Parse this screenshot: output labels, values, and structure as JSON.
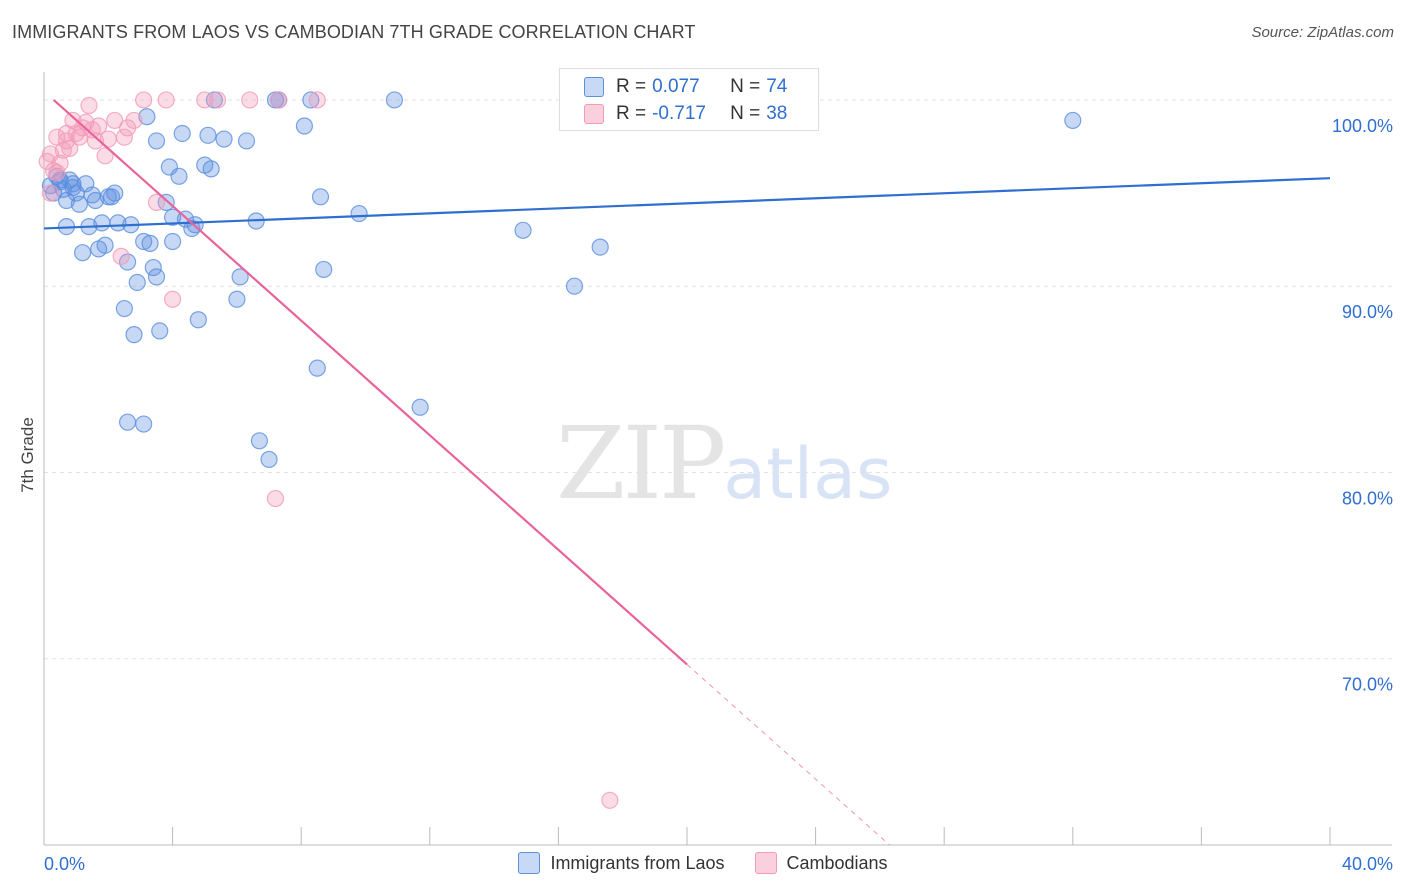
{
  "header": {
    "title": "IMMIGRANTS FROM LAOS VS CAMBODIAN 7TH GRADE CORRELATION CHART",
    "source": "Source: ZipAtlas.com"
  },
  "watermark": {
    "zip": "ZIP",
    "atlas": "atlas"
  },
  "legend": {
    "rows": [
      {
        "r_label": "R = ",
        "r_value": "0.077",
        "n_label": "N = ",
        "n_value": "74"
      },
      {
        "r_label": "R = ",
        "r_value": "-0.717",
        "n_label": "N = ",
        "n_value": "38"
      }
    ]
  },
  "chart_data": {
    "type": "scatter",
    "title": "IMMIGRANTS FROM LAOS VS CAMBODIAN 7TH GRADE CORRELATION CHART",
    "xlabel": "",
    "ylabel": "7th Grade",
    "xlim": [
      0,
      40
    ],
    "ylim": [
      60,
      101.5
    ],
    "x_tick_labels": [
      "0.0%",
      "40.0%"
    ],
    "y_ticks": [
      70,
      80,
      90,
      100
    ],
    "y_tick_labels": [
      "70.0%",
      "80.0%",
      "90.0%",
      "100.0%"
    ],
    "grid": true,
    "legend_position": "bottom",
    "colors": {
      "laos": "#5b8fe0",
      "laos_line": "#2f6fd0",
      "cambodian": "#f39ab8",
      "cambodian_line": "#e8649a"
    },
    "series": [
      {
        "name": "Immigrants from Laos",
        "r": 0.077,
        "n": 74,
        "trend": {
          "x0": 0,
          "y0": 93.1,
          "x1": 40,
          "y1": 95.8,
          "dash_from": 40
        },
        "points": [
          [
            0.2,
            95.4
          ],
          [
            0.3,
            95.0
          ],
          [
            0.4,
            95.9
          ],
          [
            0.5,
            95.6
          ],
          [
            0.6,
            95.2
          ],
          [
            0.7,
            94.6
          ],
          [
            0.8,
            95.7
          ],
          [
            0.9,
            95.3
          ],
          [
            0.7,
            93.2
          ],
          [
            1.0,
            95.0
          ],
          [
            1.1,
            94.4
          ],
          [
            1.3,
            95.5
          ],
          [
            1.4,
            93.2
          ],
          [
            1.5,
            94.9
          ],
          [
            1.6,
            94.6
          ],
          [
            1.2,
            91.8
          ],
          [
            1.7,
            92.0
          ],
          [
            1.8,
            93.4
          ],
          [
            1.9,
            92.2
          ],
          [
            2.0,
            94.8
          ],
          [
            2.1,
            94.8
          ],
          [
            2.2,
            95.0
          ],
          [
            2.3,
            93.4
          ],
          [
            2.5,
            88.8
          ],
          [
            2.6,
            91.3
          ],
          [
            2.7,
            93.3
          ],
          [
            2.8,
            87.4
          ],
          [
            2.9,
            90.2
          ],
          [
            3.1,
            92.4
          ],
          [
            3.2,
            99.1
          ],
          [
            3.3,
            92.3
          ],
          [
            3.4,
            91.0
          ],
          [
            3.5,
            90.5
          ],
          [
            3.5,
            97.8
          ],
          [
            3.6,
            87.6
          ],
          [
            3.8,
            94.5
          ],
          [
            3.9,
            96.4
          ],
          [
            4.0,
            93.7
          ],
          [
            4.0,
            92.4
          ],
          [
            4.2,
            95.9
          ],
          [
            4.3,
            98.2
          ],
          [
            4.4,
            93.6
          ],
          [
            4.6,
            93.1
          ],
          [
            4.7,
            93.3
          ],
          [
            4.8,
            88.2
          ],
          [
            5.0,
            96.5
          ],
          [
            5.1,
            98.1
          ],
          [
            5.2,
            96.3
          ],
          [
            5.3,
            100.0
          ],
          [
            5.6,
            97.9
          ],
          [
            6.0,
            89.3
          ],
          [
            6.1,
            90.5
          ],
          [
            6.3,
            97.8
          ],
          [
            6.6,
            93.5
          ],
          [
            7.2,
            100.0
          ],
          [
            7.3,
            100.0
          ],
          [
            8.1,
            98.6
          ],
          [
            8.3,
            100.0
          ],
          [
            8.5,
            85.6
          ],
          [
            8.6,
            94.8
          ],
          [
            8.7,
            90.9
          ],
          [
            9.8,
            93.9
          ],
          [
            10.9,
            100.0
          ],
          [
            11.7,
            83.5
          ],
          [
            2.6,
            82.7
          ],
          [
            3.1,
            82.6
          ],
          [
            6.7,
            81.7
          ],
          [
            7.0,
            80.7
          ],
          [
            14.9,
            93.0
          ],
          [
            16.5,
            90.0
          ],
          [
            17.3,
            92.1
          ],
          [
            32.0,
            98.9
          ],
          [
            0.5,
            95.7
          ],
          [
            0.9,
            95.5
          ]
        ]
      },
      {
        "name": "Cambodians",
        "r": -0.717,
        "n": 38,
        "trend": {
          "x0": 0.3,
          "y0": 100.0,
          "x1": 26.3,
          "y1": 60.0,
          "dash_from": 20.0
        },
        "points": [
          [
            0.1,
            96.7
          ],
          [
            0.2,
            97.1
          ],
          [
            0.3,
            96.2
          ],
          [
            0.4,
            98.0
          ],
          [
            0.5,
            96.6
          ],
          [
            0.6,
            97.3
          ],
          [
            0.7,
            97.8
          ],
          [
            0.8,
            97.4
          ],
          [
            0.9,
            98.9
          ],
          [
            1.0,
            98.2
          ],
          [
            1.1,
            98.0
          ],
          [
            1.2,
            98.5
          ],
          [
            1.3,
            98.8
          ],
          [
            1.4,
            99.7
          ],
          [
            1.5,
            98.4
          ],
          [
            1.6,
            97.8
          ],
          [
            1.7,
            98.6
          ],
          [
            1.9,
            97.0
          ],
          [
            2.0,
            97.9
          ],
          [
            2.2,
            98.9
          ],
          [
            2.4,
            91.6
          ],
          [
            2.5,
            98.0
          ],
          [
            2.6,
            98.5
          ],
          [
            2.8,
            98.9
          ],
          [
            3.1,
            100.0
          ],
          [
            3.5,
            94.5
          ],
          [
            3.8,
            100.0
          ],
          [
            4.0,
            89.3
          ],
          [
            5.0,
            100.0
          ],
          [
            5.4,
            100.0
          ],
          [
            6.4,
            100.0
          ],
          [
            7.3,
            100.0
          ],
          [
            8.5,
            100.0
          ],
          [
            7.2,
            78.6
          ],
          [
            17.6,
            62.4
          ],
          [
            0.2,
            95.0
          ],
          [
            0.4,
            96.1
          ],
          [
            0.7,
            98.2
          ]
        ]
      }
    ]
  },
  "bottom_legend": {
    "items": [
      {
        "label": "Immigrants from Laos"
      },
      {
        "label": "Cambodians"
      }
    ]
  }
}
